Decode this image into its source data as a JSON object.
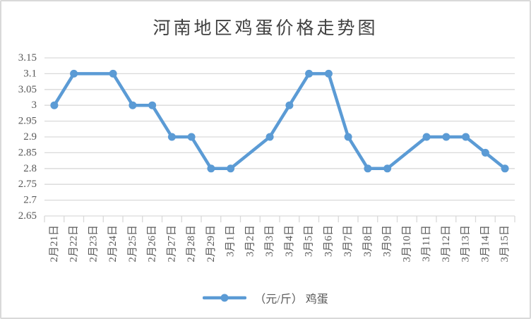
{
  "chart_data": {
    "type": "line",
    "title": "河南地区鸡蛋价格走势图",
    "categories": [
      "2月21日",
      "2月22日",
      "2月23日",
      "2月24日",
      "2月25日",
      "2月26日",
      "2月27日",
      "2月28日",
      "2月29日",
      "3月1日",
      "3月2日",
      "3月3日",
      "3月4日",
      "3月5日",
      "3月6日",
      "3月7日",
      "3月8日",
      "3月9日",
      "3月10日",
      "3月11日",
      "3月12日",
      "3月13日",
      "3月14日",
      "3月15日"
    ],
    "series": [
      {
        "name": "（元/斤） 鸡蛋",
        "values": [
          3.0,
          3.1,
          null,
          3.1,
          3.0,
          3.0,
          2.9,
          2.9,
          2.8,
          2.8,
          null,
          2.9,
          3.0,
          3.1,
          3.1,
          2.9,
          2.8,
          2.8,
          null,
          2.9,
          2.9,
          2.9,
          2.85,
          2.8
        ]
      }
    ],
    "ylim": [
      2.65,
      3.15
    ],
    "ytick_labels": [
      "3.15",
      "3.1",
      "3.05",
      "3",
      "2.95",
      "2.9",
      "2.85",
      "2.8",
      "2.75",
      "2.7",
      "2.65"
    ],
    "xlabel": "",
    "ylabel": "",
    "grid": "horizontal",
    "legend_position": "bottom",
    "marker": "circle"
  },
  "colors": {
    "series": "#5B9BD5",
    "gridline": "#D9D9D9",
    "axis_text": "#595959",
    "title_text": "#404040",
    "frame_border": "#D9D9D9",
    "background": "#FFFFFF"
  }
}
